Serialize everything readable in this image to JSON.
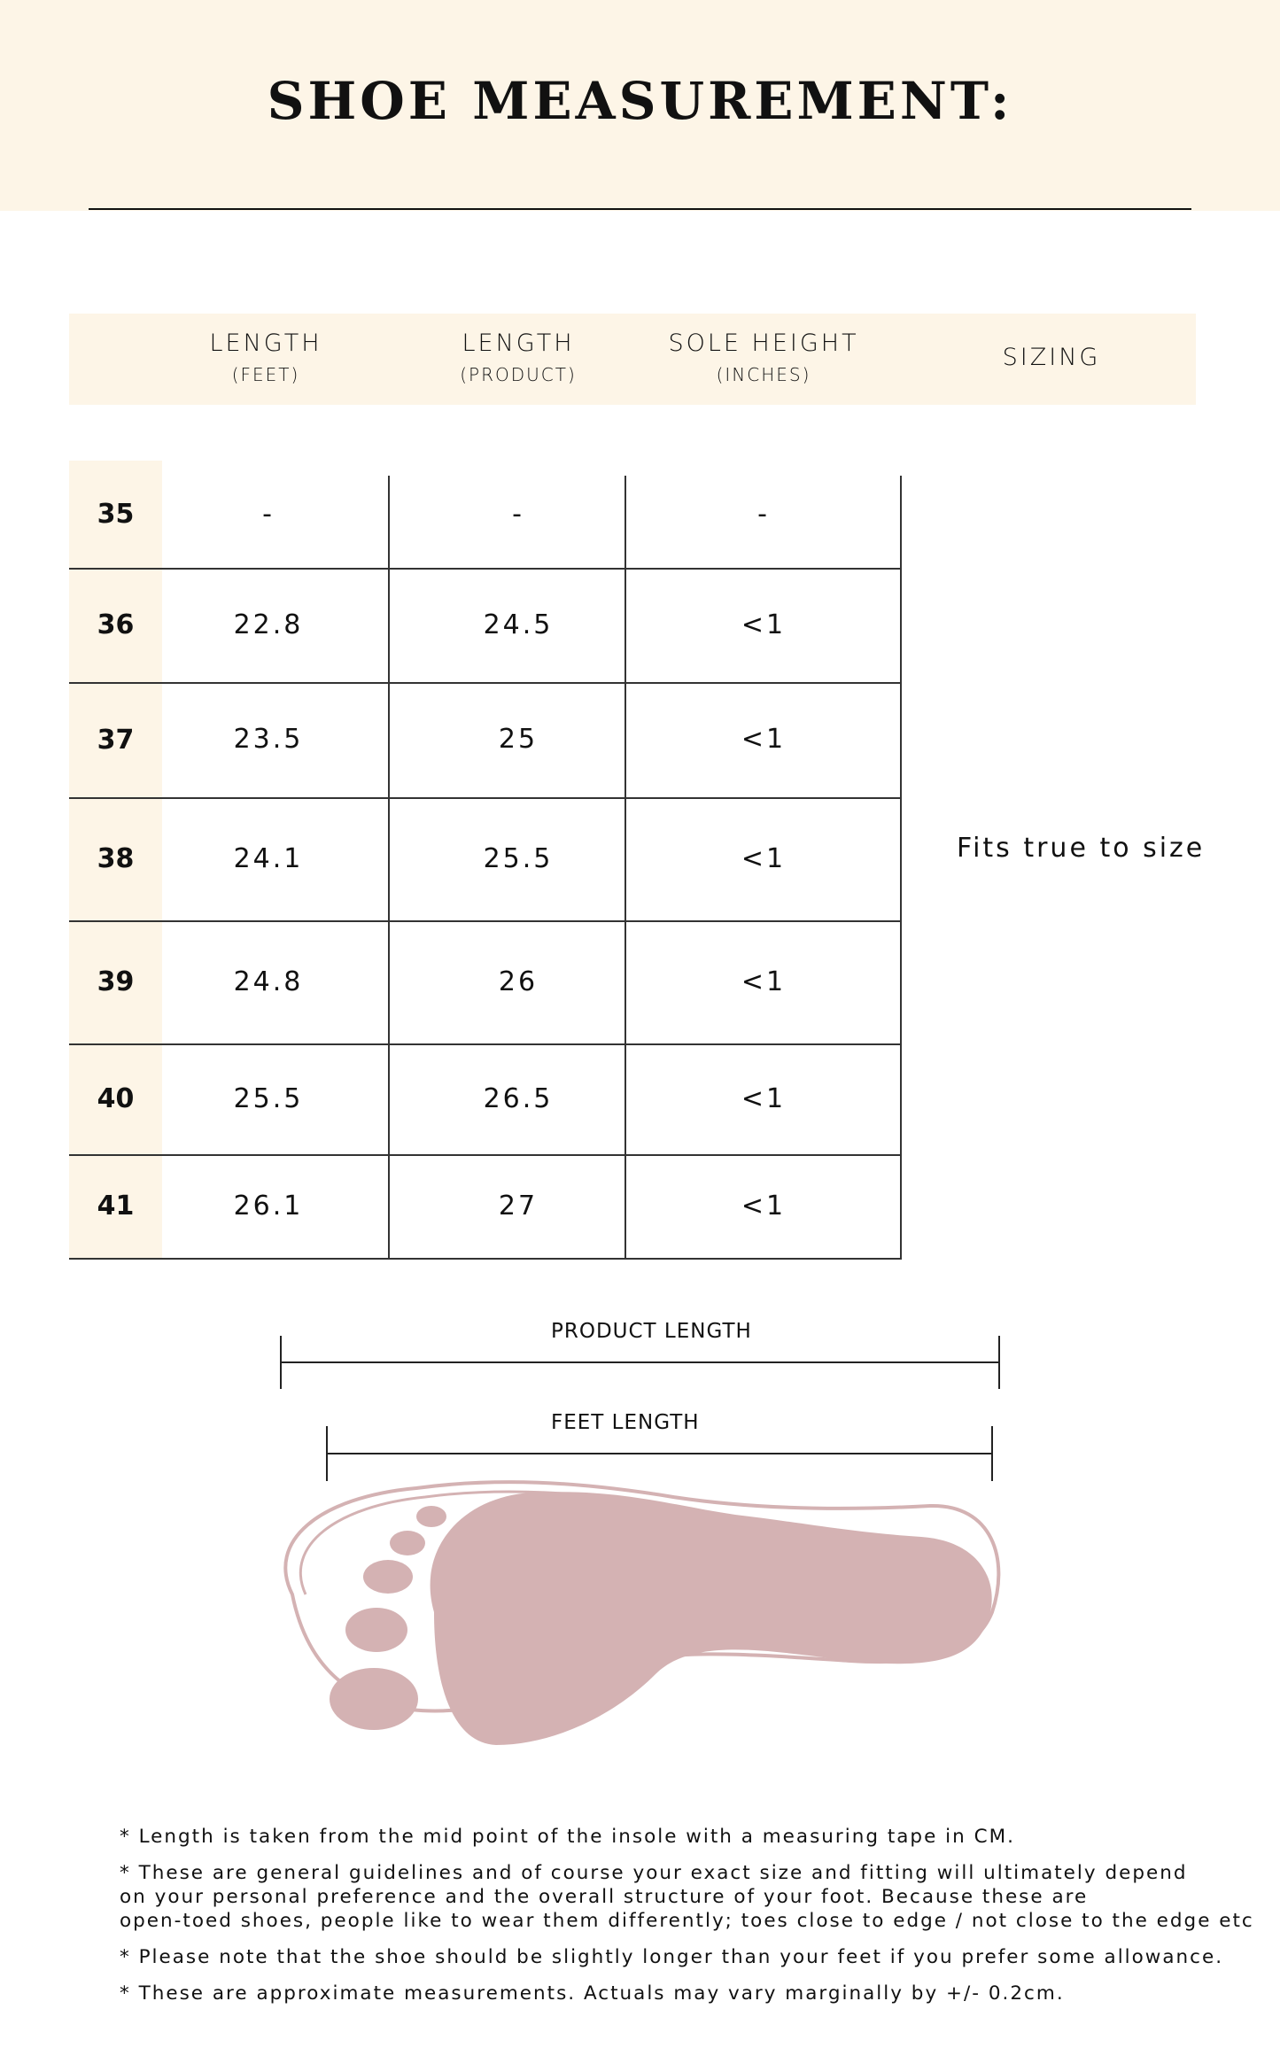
{
  "title": "SHOE MEASUREMENT:",
  "headers": [
    {
      "label": "LENGTH",
      "sub": "(FEET)"
    },
    {
      "label": "LENGTH",
      "sub": "(PRODUCT)"
    },
    {
      "label": "SOLE HEIGHT",
      "sub": "(INCHES)"
    },
    {
      "label": "SIZING"
    }
  ],
  "rows": [
    {
      "size": "35",
      "feet": "-",
      "product": "-",
      "sole": "-"
    },
    {
      "size": "36",
      "feet": "22.8",
      "product": "24.5",
      "sole": "<1"
    },
    {
      "size": "37",
      "feet": "23.5",
      "product": "25",
      "sole": "<1"
    },
    {
      "size": "38",
      "feet": "24.1",
      "product": "25.5",
      "sole": "<1"
    },
    {
      "size": "39",
      "feet": "24.8",
      "product": "26",
      "sole": "<1"
    },
    {
      "size": "40",
      "feet": "25.5",
      "product": "26.5",
      "sole": "<1"
    },
    {
      "size": "41",
      "feet": "26.1",
      "product": "27",
      "sole": "<1"
    }
  ],
  "sizing": "Fits true to size",
  "diagram": {
    "product_length": "PRODUCT LENGTH",
    "feet_length": "FEET LENGTH",
    "foot_color": "#d4b2b3"
  },
  "notes": [
    "* Length is taken from the mid point of the insole with a measuring tape in CM.",
    "* These are general guidelines and of course your exact size and fitting will ultimately depend",
    "on your personal preference and the overall structure of your foot. Because these are",
    "open-toed shoes, people like to wear them differently; toes close to edge / not close to the edge etc",
    "* Please note that the shoe should be slightly longer than your feet if you prefer some allowance.",
    "* These are approximate measurements. Actuals may vary marginally by +/- 0.2cm."
  ],
  "colors": {
    "cream": "#fdf5e7",
    "text": "#111111"
  }
}
